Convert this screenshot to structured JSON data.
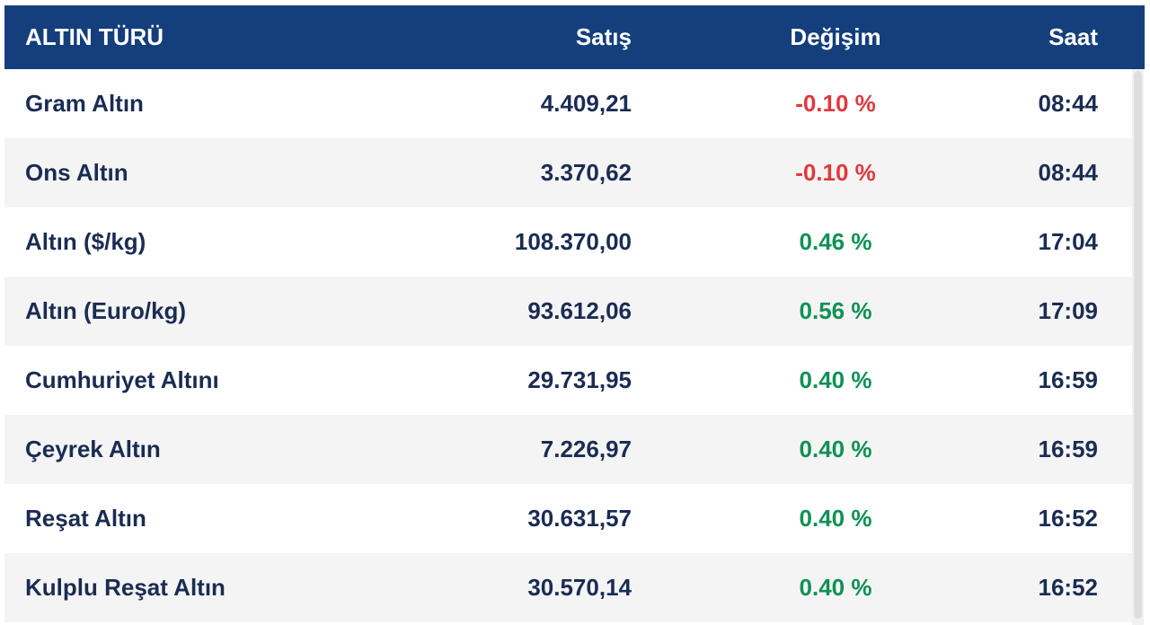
{
  "gold_table": {
    "headers": {
      "type": "ALTIN TÜRÜ",
      "price": "Satış",
      "change": "Değişim",
      "time": "Saat"
    },
    "rows": [
      {
        "type": "Gram Altın",
        "price": "4.409,21",
        "change": "-0.10 %",
        "direction": "down",
        "time": "08:44"
      },
      {
        "type": "Ons Altın",
        "price": "3.370,62",
        "change": "-0.10 %",
        "direction": "down",
        "time": "08:44"
      },
      {
        "type": "Altın ($/kg)",
        "price": "108.370,00",
        "change": "0.46 %",
        "direction": "up",
        "time": "17:04"
      },
      {
        "type": "Altın (Euro/kg)",
        "price": "93.612,06",
        "change": "0.56 %",
        "direction": "up",
        "time": "17:09"
      },
      {
        "type": "Cumhuriyet Altını",
        "price": "29.731,95",
        "change": "0.40 %",
        "direction": "up",
        "time": "16:59"
      },
      {
        "type": "Çeyrek Altın",
        "price": "7.226,97",
        "change": "0.40 %",
        "direction": "up",
        "time": "16:59"
      },
      {
        "type": "Reşat Altın",
        "price": "30.631,57",
        "change": "0.40 %",
        "direction": "up",
        "time": "16:52"
      },
      {
        "type": "Kulplu Reşat Altın",
        "price": "30.570,14",
        "change": "0.40 %",
        "direction": "up",
        "time": "16:52"
      }
    ],
    "colors": {
      "header_bg": "#143f7c",
      "row_text": "#1a2c52",
      "positive": "#0f9155",
      "negative": "#e1383e",
      "row_alt_bg": "#f4f4f4"
    }
  }
}
